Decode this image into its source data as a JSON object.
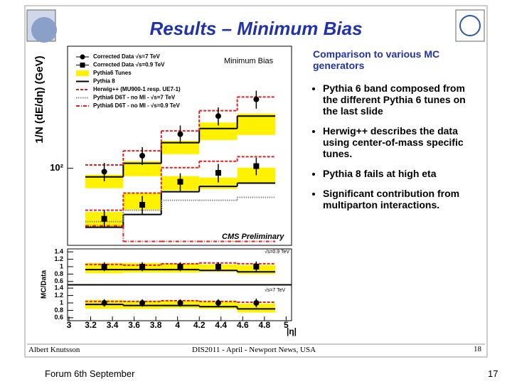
{
  "header": {
    "title": "Results – Minimum Bias"
  },
  "chart_data": [
    {
      "type": "step",
      "ylabel": "1/N (dE/dη) (GeV)",
      "xlim": [
        3,
        5.05
      ],
      "ylim": [
        50,
        300
      ],
      "yscale": "log",
      "yticks": [
        {
          "value": 100,
          "label": "10²"
        }
      ],
      "bins": [
        3.15,
        3.5,
        3.85,
        4.2,
        4.55,
        4.9
      ],
      "legend": "upper left",
      "annotations": [
        "Minimum Bias",
        "CMS Preliminary"
      ],
      "series": [
        {
          "name": "Corrected Data √s=7 TeV",
          "marker": "circle",
          "color": "#000000",
          "values": [
            [
              97,
              112,
              136,
              160,
              186
            ]
          ],
          "errors": [
            [
              8,
              9,
              11,
              13,
              15
            ]
          ]
        },
        {
          "name": "Corrected Data √s=0.9 TeV",
          "marker": "square",
          "color": "#000000",
          "values": [
            [
              63.5,
              72,
              88.6,
              96,
              102
            ]
          ],
          "errors": [
            [
              5,
              6,
              7,
              8,
              8
            ]
          ]
        },
        {
          "name": "Pythia6 Tunes",
          "style": "band",
          "color": "#fff200",
          "low": [
            [
              83.6,
              93.2,
              113.6,
              129,
              135
            ],
            [
              58.8,
              69,
              82,
              83,
              87.5
            ]
          ],
          "high": [
            [
              94.4,
              106.6,
              128,
              151,
              163.6
            ],
            [
              67.5,
              80,
              93.2,
              92,
              100.6
            ]
          ]
        },
        {
          "name": "Pythia 8",
          "style": "step",
          "dash": "solid",
          "color": "#000000",
          "values": [
            [
              92.6,
              104.6,
              126,
              143,
              160
            ],
            [
              58.8,
              66,
              81,
              85,
              87.5
            ]
          ]
        },
        {
          "name": "Herwig++ (MU900-1 resp. UE7-1)",
          "style": "step",
          "dash": "dashed",
          "color": "#e02020",
          "values": [
            [
              103,
              117,
              140,
              168,
              190
            ],
            [
              68.6,
              80,
              100.6,
              106.6,
              111
            ]
          ]
        },
        {
          "name": "Pythia6 D6T - no MI - √s=7 TeV",
          "style": "step",
          "dash": "dotted",
          "color": "#888888",
          "values": [
            [
              61.9,
              68.6,
              75,
              75,
              77
            ]
          ]
        },
        {
          "name": "Pythia6 D6T - no MI - √s=0.9 TeV",
          "style": "step",
          "dash": "dashdot",
          "color": "#e02020",
          "values": [
            [
              59.6,
              51.8,
              51.8,
              51.8,
              51.8
            ]
          ]
        }
      ]
    },
    {
      "type": "step",
      "ylabel": "MC/Data",
      "annotations": [
        "√s=0.9 TeV"
      ],
      "xlim": [
        3,
        5.05
      ],
      "ylim": [
        0.52,
        1.48
      ],
      "yticks": [
        1.4,
        1.2,
        1,
        0.8,
        0.6
      ],
      "bins": [
        3.15,
        3.5,
        3.85,
        4.2,
        4.55,
        4.9
      ],
      "series": [
        {
          "style": "band",
          "color": "#fff200",
          "low": [
            [
              0.82,
              0.84,
              0.84,
              0.86,
              0.8
            ]
          ],
          "high": [
            [
              1.1,
              1.1,
              1.08,
              1.06,
              1.04
            ]
          ]
        },
        {
          "style": "step",
          "dash": "solid",
          "color": "#000000",
          "values": [
            [
              0.92,
              0.92,
              0.92,
              0.9,
              0.86
            ]
          ]
        },
        {
          "style": "step",
          "dash": "dashed",
          "color": "#e02020",
          "values": [
            [
              1.06,
              1.04,
              1.08,
              1.1,
              1.08
            ]
          ]
        },
        {
          "marker": "square",
          "color": "#000000",
          "values": [
            [
              1,
              1,
              1,
              1,
              1
            ]
          ],
          "errors": [
            [
              0.12,
              0.12,
              0.12,
              0.12,
              0.14
            ]
          ]
        }
      ]
    },
    {
      "type": "step",
      "xlabel": "|η|",
      "annotations": [
        "√s=7 TeV"
      ],
      "xlim": [
        3,
        5.05
      ],
      "ylim": [
        0.52,
        1.48
      ],
      "yticks": [
        1.4,
        1.2,
        1,
        0.8,
        0.6
      ],
      "xticks": [
        3,
        3.2,
        3.4,
        3.6,
        3.8,
        4,
        4.2,
        4.4,
        4.6,
        4.8,
        5
      ],
      "bins": [
        3.15,
        3.5,
        3.85,
        4.2,
        4.55,
        4.9
      ],
      "series": [
        {
          "style": "band",
          "color": "#fff200",
          "low": [
            [
              0.84,
              0.84,
              0.86,
              0.84,
              0.74
            ]
          ],
          "high": [
            [
              1.08,
              1.06,
              1.06,
              1.04,
              0.98
            ]
          ]
        },
        {
          "style": "step",
          "dash": "solid",
          "color": "#000000",
          "values": [
            [
              0.96,
              0.93,
              0.93,
              0.9,
              0.84
            ]
          ]
        },
        {
          "style": "step",
          "dash": "dashed",
          "color": "#e02020",
          "values": [
            [
              1.04,
              1.04,
              1.06,
              1.04,
              1.02
            ]
          ]
        },
        {
          "marker": "circle",
          "color": "#000000",
          "values": [
            [
              1,
              1,
              1,
              1,
              1
            ]
          ],
          "errors": [
            [
              0.1,
              0.1,
              0.1,
              0.1,
              0.12
            ]
          ]
        }
      ]
    }
  ],
  "side": {
    "heading": "Comparison to various MC generators",
    "bullets": [
      "Pythia 6 band composed from the different Pythia 6 tunes on the last slide",
      "Herwig++ describes the data using center-of-mass specific tunes.",
      "Pythia 8 fails at high eta",
      "Significant contribution from multiparton interactions."
    ]
  },
  "footer": {
    "left": "Albert Knutsson",
    "center": "DIS2011 - April - Newport News, USA",
    "page": "18"
  },
  "slide_footer": {
    "left": "Forum 6th September",
    "page": "17"
  }
}
